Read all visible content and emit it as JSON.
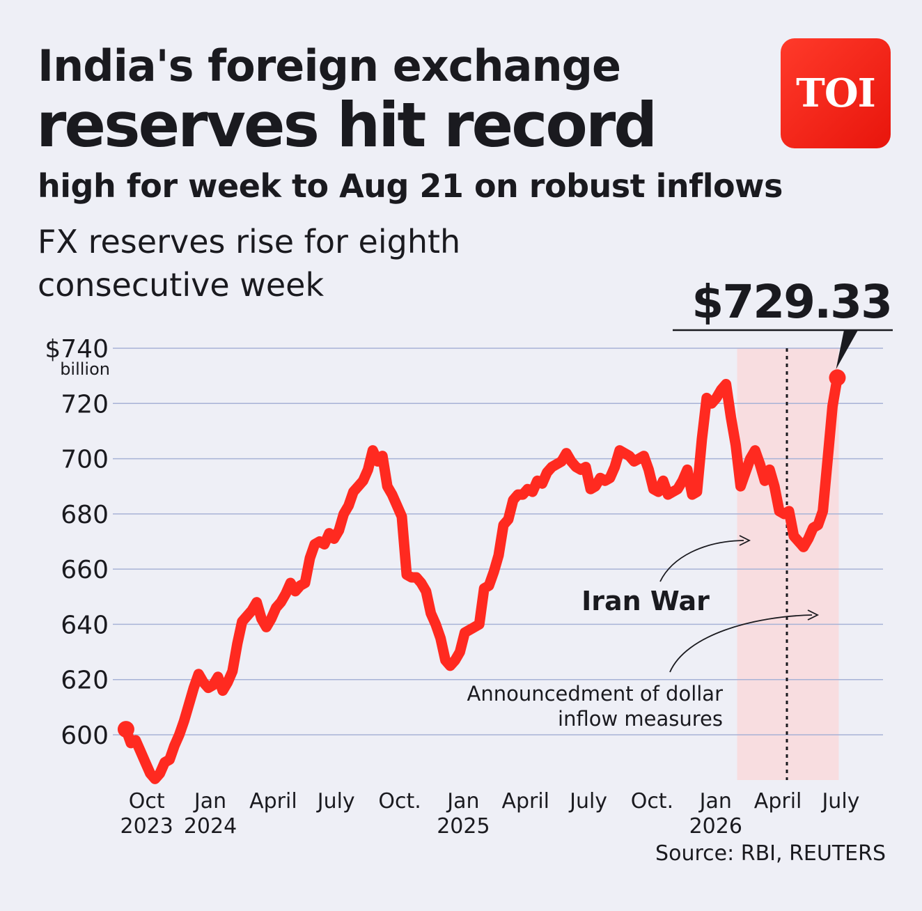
{
  "header": {
    "title_line1": "India's foreign exchange",
    "title_line2": "reserves hit record",
    "title_line3": "high for week to Aug 21 on robust inflows",
    "subtitle": "FX reserves rise for eighth consecutive week",
    "logo_text": "TOI"
  },
  "source": "Source: RBI, REUTERS",
  "chart_data": {
    "type": "line",
    "y_unit_prefix": "$",
    "y_unit_label": "billion",
    "ylim": [
      583,
      740
    ],
    "yticks": [
      600,
      620,
      640,
      660,
      680,
      700,
      720,
      740
    ],
    "ytick_labels": [
      "600",
      "620",
      "640",
      "660",
      "680",
      "700",
      "720",
      "$740"
    ],
    "xlim": [
      "2023-08-21",
      "2026-08-31"
    ],
    "x_ticks": [
      {
        "date": "2023-10-01",
        "label1": "Oct",
        "label2": "2023"
      },
      {
        "date": "2024-01-01",
        "label1": "Jan",
        "label2": "2024"
      },
      {
        "date": "2024-04-01",
        "label1": "April",
        "label2": ""
      },
      {
        "date": "2024-07-01",
        "label1": "July",
        "label2": ""
      },
      {
        "date": "2024-10-01",
        "label1": "Oct.",
        "label2": ""
      },
      {
        "date": "2025-01-01",
        "label1": "Jan",
        "label2": "2025"
      },
      {
        "date": "2025-04-01",
        "label1": "April",
        "label2": ""
      },
      {
        "date": "2025-07-01",
        "label1": "July",
        "label2": ""
      },
      {
        "date": "2025-10-01",
        "label1": "Oct.",
        "label2": ""
      },
      {
        "date": "2026-01-01",
        "label1": "Jan",
        "label2": "2026"
      },
      {
        "date": "2026-04-01",
        "label1": "April",
        "label2": ""
      },
      {
        "date": "2026-07-01",
        "label1": "July",
        "label2": ""
      }
    ],
    "series": [
      {
        "color": "#ff2a20",
        "points": [
          [
            "2023-09-01",
            602
          ],
          [
            "2023-09-08",
            597
          ],
          [
            "2023-09-15",
            598
          ],
          [
            "2023-09-22",
            594
          ],
          [
            "2023-09-29",
            590
          ],
          [
            "2023-10-06",
            586
          ],
          [
            "2023-10-13",
            584
          ],
          [
            "2023-10-20",
            586
          ],
          [
            "2023-10-27",
            590
          ],
          [
            "2023-11-03",
            591
          ],
          [
            "2023-11-10",
            596
          ],
          [
            "2023-11-17",
            600
          ],
          [
            "2023-11-24",
            605
          ],
          [
            "2023-12-01",
            611
          ],
          [
            "2023-12-08",
            617
          ],
          [
            "2023-12-15",
            622
          ],
          [
            "2023-12-22",
            619
          ],
          [
            "2023-12-29",
            617
          ],
          [
            "2024-01-05",
            618
          ],
          [
            "2024-01-12",
            621
          ],
          [
            "2024-01-19",
            616
          ],
          [
            "2024-01-26",
            619
          ],
          [
            "2024-02-02",
            623
          ],
          [
            "2024-02-09",
            633
          ],
          [
            "2024-02-16",
            641
          ],
          [
            "2024-02-23",
            643
          ],
          [
            "2024-03-01",
            645
          ],
          [
            "2024-03-08",
            648
          ],
          [
            "2024-03-15",
            642
          ],
          [
            "2024-03-22",
            639
          ],
          [
            "2024-03-29",
            642
          ],
          [
            "2024-04-05",
            646
          ],
          [
            "2024-04-12",
            648
          ],
          [
            "2024-04-19",
            651
          ],
          [
            "2024-04-26",
            655
          ],
          [
            "2024-05-03",
            652
          ],
          [
            "2024-05-10",
            654
          ],
          [
            "2024-05-17",
            655
          ],
          [
            "2024-05-24",
            664
          ],
          [
            "2024-05-31",
            669
          ],
          [
            "2024-06-07",
            670
          ],
          [
            "2024-06-14",
            669
          ],
          [
            "2024-06-21",
            673
          ],
          [
            "2024-06-28",
            671
          ],
          [
            "2024-07-05",
            674
          ],
          [
            "2024-07-12",
            680
          ],
          [
            "2024-07-19",
            683
          ],
          [
            "2024-07-26",
            688
          ],
          [
            "2024-08-02",
            690
          ],
          [
            "2024-08-09",
            692
          ],
          [
            "2024-08-16",
            696
          ],
          [
            "2024-08-23",
            703
          ],
          [
            "2024-08-30",
            699
          ],
          [
            "2024-09-06",
            701
          ],
          [
            "2024-09-13",
            690
          ],
          [
            "2024-09-20",
            687
          ],
          [
            "2024-09-27",
            683
          ],
          [
            "2024-10-04",
            679
          ],
          [
            "2024-10-11",
            658
          ],
          [
            "2024-10-18",
            657
          ],
          [
            "2024-10-25",
            657
          ],
          [
            "2024-11-01",
            655
          ],
          [
            "2024-11-08",
            652
          ],
          [
            "2024-11-15",
            644
          ],
          [
            "2024-11-22",
            640
          ],
          [
            "2024-11-29",
            635
          ],
          [
            "2024-12-06",
            627
          ],
          [
            "2024-12-13",
            625
          ],
          [
            "2024-12-20",
            627
          ],
          [
            "2024-12-27",
            630
          ],
          [
            "2025-01-03",
            637
          ],
          [
            "2025-01-10",
            638
          ],
          [
            "2025-01-17",
            639
          ],
          [
            "2025-01-24",
            640
          ],
          [
            "2025-01-31",
            653
          ],
          [
            "2025-02-07",
            654
          ],
          [
            "2025-02-14",
            659
          ],
          [
            "2025-02-21",
            665
          ],
          [
            "2025-02-28",
            676
          ],
          [
            "2025-03-07",
            678
          ],
          [
            "2025-03-14",
            685
          ],
          [
            "2025-03-21",
            687
          ],
          [
            "2025-03-28",
            687
          ],
          [
            "2025-04-04",
            689
          ],
          [
            "2025-04-11",
            688
          ],
          [
            "2025-04-18",
            692
          ],
          [
            "2025-04-25",
            691
          ],
          [
            "2025-05-02",
            695
          ],
          [
            "2025-05-09",
            697
          ],
          [
            "2025-05-16",
            698
          ],
          [
            "2025-05-23",
            699
          ],
          [
            "2025-05-30",
            702
          ],
          [
            "2025-06-06",
            699
          ],
          [
            "2025-06-13",
            697
          ],
          [
            "2025-06-20",
            696
          ],
          [
            "2025-06-27",
            697
          ],
          [
            "2025-07-04",
            689
          ],
          [
            "2025-07-11",
            690
          ],
          [
            "2025-07-18",
            693
          ],
          [
            "2025-07-25",
            692
          ],
          [
            "2025-08-01",
            693
          ],
          [
            "2025-08-08",
            697
          ],
          [
            "2025-08-15",
            703
          ],
          [
            "2025-08-22",
            702
          ],
          [
            "2025-08-29",
            701
          ],
          [
            "2025-09-05",
            699
          ],
          [
            "2025-09-12",
            700
          ],
          [
            "2025-09-19",
            701
          ],
          [
            "2025-09-26",
            696
          ],
          [
            "2025-10-03",
            689
          ],
          [
            "2025-10-10",
            688
          ],
          [
            "2025-10-17",
            692
          ],
          [
            "2025-10-24",
            687
          ],
          [
            "2025-10-31",
            688
          ],
          [
            "2025-11-07",
            689
          ],
          [
            "2025-11-14",
            692
          ],
          [
            "2025-11-21",
            696
          ],
          [
            "2025-11-28",
            687
          ],
          [
            "2025-12-05",
            688
          ],
          [
            "2025-12-12",
            707
          ],
          [
            "2025-12-19",
            722
          ],
          [
            "2025-12-26",
            720
          ],
          [
            "2026-01-02",
            722
          ],
          [
            "2026-01-09",
            725
          ],
          [
            "2026-01-16",
            727
          ],
          [
            "2026-01-23",
            715
          ],
          [
            "2026-01-30",
            705
          ],
          [
            "2026-02-06",
            690
          ],
          [
            "2026-02-13",
            695
          ],
          [
            "2026-02-20",
            700
          ],
          [
            "2026-02-27",
            703
          ],
          [
            "2026-03-06",
            698
          ],
          [
            "2026-03-13",
            692
          ],
          [
            "2026-03-20",
            696
          ],
          [
            "2026-03-27",
            690
          ],
          [
            "2026-04-03",
            681
          ],
          [
            "2026-04-10",
            680
          ],
          [
            "2026-04-17",
            681
          ],
          [
            "2026-04-24",
            672
          ],
          [
            "2026-05-01",
            670
          ],
          [
            "2026-05-08",
            668
          ],
          [
            "2026-05-15",
            671
          ],
          [
            "2026-05-22",
            675
          ],
          [
            "2026-05-29",
            676
          ],
          [
            "2026-06-05",
            681
          ],
          [
            "2026-06-12",
            700
          ],
          [
            "2026-06-19",
            719
          ],
          [
            "2026-06-26",
            729.33
          ]
        ]
      }
    ],
    "highlight_band": {
      "x_start": "2026-02-01",
      "x_end": "2026-06-28",
      "color": "#f8dde0"
    },
    "vertical_marker": {
      "x": "2026-04-14"
    },
    "callout": {
      "label": "$729.33",
      "x": "2026-06-26",
      "y": 729.33
    },
    "annotations": [
      {
        "text": "Iran War"
      },
      {
        "text_line1": "Announcedment of dollar",
        "text_line2": "inflow measures"
      }
    ]
  }
}
